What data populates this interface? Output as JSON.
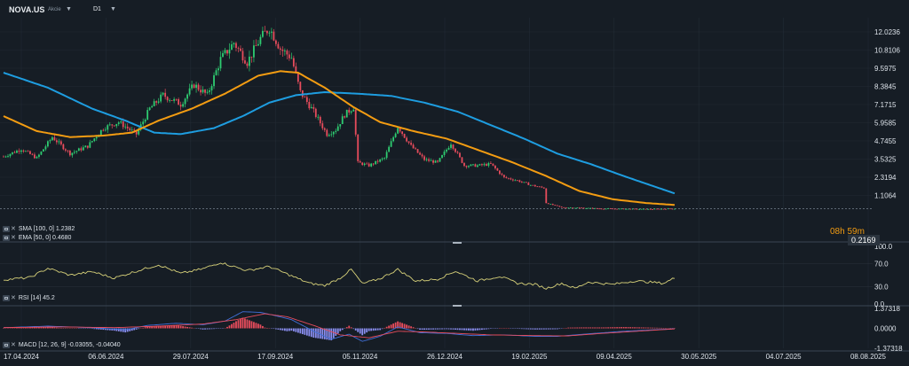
{
  "header": {
    "symbol": "NOVA.US",
    "asset_type": "Akcie",
    "timeframe": "D1"
  },
  "colors": {
    "background": "#161d25",
    "grid": "#222b35",
    "candle_up": "#2ecc71",
    "candle_down": "#e74c5c",
    "sma_line": "#1e9de0",
    "ema_line": "#f39c12",
    "rsi_line": "#d8d27a",
    "macd_line": "#3f6fd8",
    "signal_line": "#e74c5c",
    "hist_pos": "#e74c5c",
    "hist_neg": "#8a8ef0",
    "timer": "#f39c12"
  },
  "main_chart": {
    "price_axis": [
      "12.0236",
      "10.8106",
      "9.5975",
      "8.3845",
      "7.1715",
      "5.9585",
      "4.7455",
      "3.5325",
      "2.3194",
      "1.1064"
    ],
    "current_price": "0.2169",
    "candle_timer": "08h 59m",
    "indicators": {
      "sma_label": "SMA [100, 0] 1.2382",
      "ema_label": "EMA [50, 0] 0.4680"
    },
    "y_range": [
      0,
      13
    ]
  },
  "rsi_panel": {
    "label": "RSI [14] 45.2",
    "axis": [
      "100.0",
      "70.0",
      "30.0",
      "0.0"
    ]
  },
  "macd_panel": {
    "label": "MACD [12, 26, 9] -0.03055, -0.04040",
    "axis": [
      "1.37318",
      "0.0000",
      "-1.37318"
    ]
  },
  "time_axis": [
    "17.04.2024",
    "06.06.2024",
    "29.07.2024",
    "17.09.2024",
    "05.11.2024",
    "26.12.2024",
    "19.02.2025",
    "09.04.2025",
    "30.05.2025",
    "04.07.2025",
    "08.08.2025"
  ],
  "chart_data": {
    "type": "candlestick",
    "candle_anchors": [
      {
        "i": 0,
        "p": 3.7
      },
      {
        "i": 8,
        "p": 4.2
      },
      {
        "i": 15,
        "p": 3.6
      },
      {
        "i": 22,
        "p": 5.0
      },
      {
        "i": 30,
        "p": 3.9
      },
      {
        "i": 38,
        "p": 4.4
      },
      {
        "i": 45,
        "p": 5.6
      },
      {
        "i": 52,
        "p": 6.0
      },
      {
        "i": 60,
        "p": 5.2
      },
      {
        "i": 66,
        "p": 6.9
      },
      {
        "i": 72,
        "p": 7.8
      },
      {
        "i": 80,
        "p": 7.2
      },
      {
        "i": 86,
        "p": 8.5
      },
      {
        "i": 92,
        "p": 7.8
      },
      {
        "i": 98,
        "p": 10.2
      },
      {
        "i": 104,
        "p": 11.3
      },
      {
        "i": 110,
        "p": 10.0
      },
      {
        "i": 116,
        "p": 11.6
      },
      {
        "i": 120,
        "p": 12.3
      },
      {
        "i": 125,
        "p": 10.9
      },
      {
        "i": 130,
        "p": 10.3
      },
      {
        "i": 134,
        "p": 8.0
      },
      {
        "i": 140,
        "p": 6.7
      },
      {
        "i": 146,
        "p": 5.2
      },
      {
        "i": 150,
        "p": 5.5
      },
      {
        "i": 154,
        "p": 6.5
      },
      {
        "i": 158,
        "p": 7.0
      },
      {
        "i": 160,
        "p": 3.3
      },
      {
        "i": 165,
        "p": 3.1
      },
      {
        "i": 172,
        "p": 3.6
      },
      {
        "i": 178,
        "p": 5.7
      },
      {
        "i": 184,
        "p": 4.4
      },
      {
        "i": 190,
        "p": 3.5
      },
      {
        "i": 196,
        "p": 3.3
      },
      {
        "i": 202,
        "p": 4.6
      },
      {
        "i": 208,
        "p": 3.1
      },
      {
        "i": 214,
        "p": 3.1
      },
      {
        "i": 220,
        "p": 3.2
      },
      {
        "i": 226,
        "p": 2.3
      },
      {
        "i": 232,
        "p": 2.1
      },
      {
        "i": 238,
        "p": 1.8
      },
      {
        "i": 244,
        "p": 1.6
      },
      {
        "i": 245,
        "p": 0.6
      },
      {
        "i": 252,
        "p": 0.3
      },
      {
        "i": 260,
        "p": 0.28
      },
      {
        "i": 270,
        "p": 0.22
      },
      {
        "i": 280,
        "p": 0.2
      },
      {
        "i": 290,
        "p": 0.18
      },
      {
        "i": 303,
        "p": 0.22
      }
    ],
    "sma_anchors": [
      {
        "i": 0,
        "p": 9.3
      },
      {
        "i": 20,
        "p": 8.3
      },
      {
        "i": 40,
        "p": 6.9
      },
      {
        "i": 55,
        "p": 6.1
      },
      {
        "i": 68,
        "p": 5.3
      },
      {
        "i": 80,
        "p": 5.2
      },
      {
        "i": 95,
        "p": 5.6
      },
      {
        "i": 108,
        "p": 6.4
      },
      {
        "i": 120,
        "p": 7.3
      },
      {
        "i": 132,
        "p": 7.8
      },
      {
        "i": 145,
        "p": 8.0
      },
      {
        "i": 160,
        "p": 7.9
      },
      {
        "i": 175,
        "p": 7.75
      },
      {
        "i": 190,
        "p": 7.3
      },
      {
        "i": 205,
        "p": 6.7
      },
      {
        "i": 220,
        "p": 5.8
      },
      {
        "i": 235,
        "p": 4.9
      },
      {
        "i": 250,
        "p": 3.9
      },
      {
        "i": 265,
        "p": 3.2
      },
      {
        "i": 280,
        "p": 2.4
      },
      {
        "i": 303,
        "p": 1.24
      }
    ],
    "ema_anchors": [
      {
        "i": 0,
        "p": 6.4
      },
      {
        "i": 15,
        "p": 5.4
      },
      {
        "i": 30,
        "p": 5.0
      },
      {
        "i": 45,
        "p": 5.1
      },
      {
        "i": 58,
        "p": 5.3
      },
      {
        "i": 70,
        "p": 6.1
      },
      {
        "i": 85,
        "p": 6.9
      },
      {
        "i": 100,
        "p": 7.9
      },
      {
        "i": 115,
        "p": 9.1
      },
      {
        "i": 125,
        "p": 9.4
      },
      {
        "i": 133,
        "p": 9.3
      },
      {
        "i": 145,
        "p": 8.3
      },
      {
        "i": 158,
        "p": 7.0
      },
      {
        "i": 170,
        "p": 6.0
      },
      {
        "i": 185,
        "p": 5.4
      },
      {
        "i": 200,
        "p": 4.9
      },
      {
        "i": 215,
        "p": 4.1
      },
      {
        "i": 230,
        "p": 3.3
      },
      {
        "i": 245,
        "p": 2.4
      },
      {
        "i": 260,
        "p": 1.4
      },
      {
        "i": 275,
        "p": 0.85
      },
      {
        "i": 290,
        "p": 0.6
      },
      {
        "i": 303,
        "p": 0.47
      }
    ],
    "rsi_anchors": [
      {
        "i": 0,
        "p": 42
      },
      {
        "i": 12,
        "p": 46
      },
      {
        "i": 20,
        "p": 62
      },
      {
        "i": 30,
        "p": 50
      },
      {
        "i": 40,
        "p": 56
      },
      {
        "i": 50,
        "p": 45
      },
      {
        "i": 60,
        "p": 57
      },
      {
        "i": 70,
        "p": 68
      },
      {
        "i": 80,
        "p": 53
      },
      {
        "i": 90,
        "p": 61
      },
      {
        "i": 98,
        "p": 72
      },
      {
        "i": 110,
        "p": 58
      },
      {
        "i": 120,
        "p": 65
      },
      {
        "i": 128,
        "p": 52
      },
      {
        "i": 138,
        "p": 36
      },
      {
        "i": 145,
        "p": 32
      },
      {
        "i": 152,
        "p": 45
      },
      {
        "i": 157,
        "p": 60
      },
      {
        "i": 162,
        "p": 35
      },
      {
        "i": 170,
        "p": 44
      },
      {
        "i": 178,
        "p": 60
      },
      {
        "i": 186,
        "p": 40
      },
      {
        "i": 196,
        "p": 43
      },
      {
        "i": 204,
        "p": 57
      },
      {
        "i": 214,
        "p": 40
      },
      {
        "i": 224,
        "p": 48
      },
      {
        "i": 232,
        "p": 36
      },
      {
        "i": 240,
        "p": 34
      },
      {
        "i": 245,
        "p": 27
      },
      {
        "i": 252,
        "p": 36
      },
      {
        "i": 258,
        "p": 27
      },
      {
        "i": 264,
        "p": 38
      },
      {
        "i": 275,
        "p": 34
      },
      {
        "i": 285,
        "p": 40
      },
      {
        "i": 298,
        "p": 36
      },
      {
        "i": 303,
        "p": 45
      }
    ],
    "macd_anchors": [
      {
        "i": 0,
        "p": 0.05
      },
      {
        "i": 20,
        "p": 0.15
      },
      {
        "i": 40,
        "p": 0.05
      },
      {
        "i": 55,
        "p": -0.1
      },
      {
        "i": 65,
        "p": 0.2
      },
      {
        "i": 78,
        "p": 0.35
      },
      {
        "i": 90,
        "p": 0.25
      },
      {
        "i": 100,
        "p": 0.5
      },
      {
        "i": 108,
        "p": 1.15
      },
      {
        "i": 116,
        "p": 1.1
      },
      {
        "i": 122,
        "p": 0.9
      },
      {
        "i": 130,
        "p": 0.6
      },
      {
        "i": 140,
        "p": -0.2
      },
      {
        "i": 148,
        "p": -0.75
      },
      {
        "i": 156,
        "p": -0.4
      },
      {
        "i": 162,
        "p": -0.9
      },
      {
        "i": 170,
        "p": -0.55
      },
      {
        "i": 178,
        "p": 0.1
      },
      {
        "i": 188,
        "p": -0.3
      },
      {
        "i": 200,
        "p": -0.35
      },
      {
        "i": 212,
        "p": -0.5
      },
      {
        "i": 225,
        "p": -0.45
      },
      {
        "i": 240,
        "p": -0.55
      },
      {
        "i": 250,
        "p": -0.55
      },
      {
        "i": 262,
        "p": -0.4
      },
      {
        "i": 280,
        "p": -0.2
      },
      {
        "i": 303,
        "p": -0.03
      }
    ],
    "signal_anchors": [
      {
        "i": 0,
        "p": 0.05
      },
      {
        "i": 25,
        "p": 0.1
      },
      {
        "i": 50,
        "p": 0.05
      },
      {
        "i": 70,
        "p": 0.15
      },
      {
        "i": 90,
        "p": 0.3
      },
      {
        "i": 105,
        "p": 0.6
      },
      {
        "i": 118,
        "p": 1.0
      },
      {
        "i": 128,
        "p": 0.8
      },
      {
        "i": 140,
        "p": 0.2
      },
      {
        "i": 152,
        "p": -0.45
      },
      {
        "i": 165,
        "p": -0.65
      },
      {
        "i": 178,
        "p": -0.2
      },
      {
        "i": 190,
        "p": -0.25
      },
      {
        "i": 205,
        "p": -0.35
      },
      {
        "i": 220,
        "p": -0.45
      },
      {
        "i": 240,
        "p": -0.5
      },
      {
        "i": 255,
        "p": -0.52
      },
      {
        "i": 270,
        "p": -0.35
      },
      {
        "i": 303,
        "p": -0.04
      }
    ],
    "total_bars": 304,
    "macd_range": [
      -1.37318,
      1.37318
    ],
    "rsi_range": [
      0,
      100
    ]
  }
}
